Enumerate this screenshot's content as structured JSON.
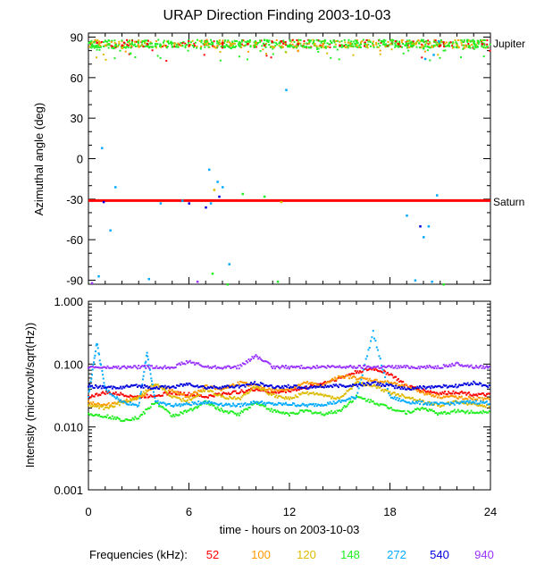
{
  "chart_data": [
    {
      "type": "scatter",
      "title": "URAP Direction Finding  2003-10-03",
      "xlabel": "",
      "ylabel": "Azimuthal angle (deg)",
      "xlim": [
        0,
        24
      ],
      "ylim": [
        -93,
        93
      ],
      "yticks": [
        "90",
        "60",
        "30",
        "0",
        "-30",
        "-60",
        "-90"
      ],
      "reference_lines": [
        {
          "label": "Jupiter",
          "y": 85,
          "drawn": false
        },
        {
          "label": "Saturn",
          "y": -31,
          "drawn": true,
          "color": "#ff0000"
        }
      ],
      "series": [
        {
          "name": "52",
          "points": [
            [
              0.5,
              86
            ],
            [
              2.0,
              84
            ],
            [
              3.5,
              85
            ],
            [
              6.0,
              84
            ],
            [
              8.0,
              86
            ],
            [
              9.5,
              85
            ],
            [
              10.5,
              84
            ],
            [
              11.5,
              87
            ],
            [
              12.5,
              85
            ],
            [
              15.0,
              84
            ],
            [
              16.5,
              86
            ],
            [
              18.5,
              85
            ],
            [
              21.0,
              84
            ],
            [
              23.5,
              85
            ]
          ]
        },
        {
          "name": "100",
          "points": [
            [
              1.0,
              84
            ],
            [
              3.0,
              83
            ],
            [
              5.5,
              84
            ],
            [
              7.5,
              83
            ],
            [
              10.0,
              86
            ],
            [
              12.5,
              80
            ],
            [
              14.0,
              85
            ],
            [
              17.0,
              84
            ],
            [
              20.5,
              83
            ],
            [
              22.5,
              84
            ]
          ]
        },
        {
          "name": "120",
          "points": [
            [
              2.0,
              82
            ],
            [
              4.5,
              84
            ],
            [
              7.0,
              85
            ],
            [
              8.5,
              84
            ],
            [
              11.0,
              83
            ],
            [
              13.5,
              85
            ],
            [
              16.0,
              84
            ],
            [
              19.5,
              85
            ],
            [
              22.0,
              84
            ],
            [
              7.5,
              -23
            ],
            [
              11.5,
              -32
            ]
          ]
        },
        {
          "name": "148",
          "points": [
            [
              0.2,
              84
            ],
            [
              1.5,
              82
            ],
            [
              2.5,
              78
            ],
            [
              4.0,
              85
            ],
            [
              5.0,
              83
            ],
            [
              7.0,
              87
            ],
            [
              8.5,
              82
            ],
            [
              9.0,
              86
            ],
            [
              10.5,
              88
            ],
            [
              12.0,
              84
            ],
            [
              13.0,
              83
            ],
            [
              14.5,
              86
            ],
            [
              15.5,
              84
            ],
            [
              16.5,
              85
            ],
            [
              17.5,
              87
            ],
            [
              18.5,
              83
            ],
            [
              19.0,
              85
            ],
            [
              20.0,
              82
            ],
            [
              21.5,
              84
            ],
            [
              23.0,
              86
            ],
            [
              23.8,
              83
            ],
            [
              9.2,
              -26
            ],
            [
              10.5,
              -28
            ],
            [
              7.4,
              -85
            ],
            [
              8.3,
              -93
            ],
            [
              11.3,
              -91
            ],
            [
              21.2,
              -93
            ]
          ]
        },
        {
          "name": "272",
          "points": [
            [
              0.8,
              8
            ],
            [
              1.3,
              -53
            ],
            [
              1.6,
              -21
            ],
            [
              4.3,
              -33
            ],
            [
              5.6,
              -31
            ],
            [
              7.2,
              -8
            ],
            [
              7.3,
              -33
            ],
            [
              7.7,
              -17
            ],
            [
              8.0,
              -21
            ],
            [
              11.8,
              51
            ],
            [
              19.0,
              -42
            ],
            [
              20.0,
              -58
            ],
            [
              20.3,
              -50
            ],
            [
              20.8,
              -27
            ],
            [
              20.1,
              74
            ],
            [
              20.6,
              77
            ],
            [
              20.9,
              87
            ],
            [
              0.6,
              -87
            ],
            [
              3.6,
              -89
            ],
            [
              8.4,
              -78
            ],
            [
              19.5,
              -90
            ],
            [
              20.5,
              -91
            ]
          ]
        },
        {
          "name": "540",
          "points": [
            [
              0.9,
              -32
            ],
            [
              6.0,
              -33
            ],
            [
              7.0,
              -36
            ],
            [
              7.8,
              -28
            ],
            [
              19.8,
              -50
            ]
          ]
        },
        {
          "name": "940",
          "points": [
            [
              0.2,
              -92
            ],
            [
              6.5,
              -91
            ]
          ]
        }
      ]
    },
    {
      "type": "line",
      "title": "",
      "xlabel": "time - hours on 2003-10-03",
      "ylabel": "Intensity (microvolt/sqrt(Hz))",
      "yscale": "log",
      "xlim": [
        0,
        24
      ],
      "ylim": [
        0.001,
        1.0
      ],
      "yticks": [
        "1.000",
        "0.100",
        "0.010",
        "0.001"
      ],
      "xticks": [
        "0",
        "6",
        "12",
        "18",
        "24"
      ],
      "series": [
        {
          "name": "52",
          "x": [
            0,
            1,
            2,
            3,
            4,
            5,
            6,
            7,
            8,
            9,
            10,
            11,
            12,
            13,
            14,
            15,
            16,
            17,
            18,
            19,
            20,
            21,
            22,
            23,
            24
          ],
          "values": [
            0.03,
            0.035,
            0.033,
            0.03,
            0.032,
            0.035,
            0.033,
            0.03,
            0.034,
            0.036,
            0.04,
            0.035,
            0.038,
            0.042,
            0.05,
            0.06,
            0.075,
            0.085,
            0.07,
            0.045,
            0.038,
            0.034,
            0.036,
            0.033,
            0.032
          ]
        },
        {
          "name": "100",
          "x": [
            0,
            1,
            2,
            3,
            4,
            5,
            6,
            7,
            8,
            9,
            10,
            11,
            12,
            13,
            14,
            15,
            16,
            17,
            18,
            19,
            20,
            21,
            22,
            23,
            24
          ],
          "values": [
            0.025,
            0.022,
            0.026,
            0.028,
            0.045,
            0.038,
            0.03,
            0.045,
            0.04,
            0.05,
            0.045,
            0.038,
            0.04,
            0.05,
            0.045,
            0.065,
            0.06,
            0.055,
            0.05,
            0.045,
            0.035,
            0.03,
            0.03,
            0.028,
            0.027
          ]
        },
        {
          "name": "120",
          "x": [
            0,
            1,
            2,
            3,
            4,
            5,
            6,
            7,
            8,
            9,
            10,
            11,
            12,
            13,
            14,
            15,
            16,
            17,
            18,
            19,
            20,
            21,
            22,
            23,
            24
          ],
          "values": [
            0.022,
            0.02,
            0.024,
            0.03,
            0.05,
            0.03,
            0.025,
            0.04,
            0.03,
            0.028,
            0.045,
            0.032,
            0.028,
            0.035,
            0.032,
            0.028,
            0.05,
            0.045,
            0.035,
            0.03,
            0.025,
            0.022,
            0.025,
            0.023,
            0.021
          ]
        },
        {
          "name": "148",
          "x": [
            0,
            1,
            2,
            3,
            4,
            5,
            6,
            7,
            8,
            9,
            10,
            11,
            12,
            13,
            14,
            15,
            16,
            17,
            18,
            19,
            20,
            21,
            22,
            23,
            24
          ],
          "values": [
            0.016,
            0.015,
            0.013,
            0.014,
            0.025,
            0.015,
            0.018,
            0.025,
            0.018,
            0.016,
            0.025,
            0.018,
            0.016,
            0.018,
            0.016,
            0.018,
            0.03,
            0.025,
            0.02,
            0.017,
            0.02,
            0.016,
            0.018,
            0.017,
            0.018
          ]
        },
        {
          "name": "272",
          "x": [
            0,
            0.5,
            1,
            2,
            3,
            3.5,
            4,
            5,
            6,
            7,
            8,
            9,
            10,
            11,
            12,
            13,
            14,
            15,
            16,
            17,
            18,
            19,
            20,
            21,
            22,
            23,
            24
          ],
          "values": [
            0.03,
            0.22,
            0.04,
            0.025,
            0.022,
            0.15,
            0.025,
            0.022,
            0.023,
            0.025,
            0.023,
            0.022,
            0.025,
            0.023,
            0.023,
            0.022,
            0.023,
            0.025,
            0.03,
            0.32,
            0.03,
            0.025,
            0.024,
            0.023,
            0.024,
            0.025,
            0.024
          ]
        },
        {
          "name": "540",
          "x": [
            0,
            1,
            2,
            3,
            4,
            5,
            6,
            7,
            8,
            9,
            10,
            11,
            12,
            13,
            14,
            15,
            16,
            17,
            18,
            19,
            20,
            21,
            22,
            23,
            24
          ],
          "values": [
            0.045,
            0.042,
            0.043,
            0.045,
            0.042,
            0.043,
            0.048,
            0.042,
            0.043,
            0.044,
            0.05,
            0.043,
            0.044,
            0.043,
            0.044,
            0.045,
            0.046,
            0.05,
            0.045,
            0.04,
            0.043,
            0.044,
            0.045,
            0.05,
            0.044
          ]
        },
        {
          "name": "940",
          "x": [
            0,
            1,
            2,
            3,
            4,
            5,
            6,
            7,
            8,
            9,
            10,
            11,
            12,
            13,
            14,
            15,
            16,
            17,
            18,
            19,
            20,
            21,
            22,
            23,
            24
          ],
          "values": [
            0.09,
            0.088,
            0.089,
            0.09,
            0.089,
            0.09,
            0.11,
            0.09,
            0.089,
            0.09,
            0.135,
            0.09,
            0.089,
            0.09,
            0.089,
            0.09,
            0.09,
            0.09,
            0.09,
            0.09,
            0.09,
            0.09,
            0.1,
            0.09,
            0.09
          ]
        }
      ]
    }
  ],
  "legend": {
    "label": "Frequencies (kHz):",
    "entries": [
      {
        "name": "52",
        "color": "#ff0000"
      },
      {
        "name": "100",
        "color": "#ff9900"
      },
      {
        "name": "120",
        "color": "#ddbb00"
      },
      {
        "name": "148",
        "color": "#22ee22"
      },
      {
        "name": "272",
        "color": "#00aaff"
      },
      {
        "name": "540",
        "color": "#0000dd"
      },
      {
        "name": "940",
        "color": "#9933ff"
      }
    ]
  }
}
